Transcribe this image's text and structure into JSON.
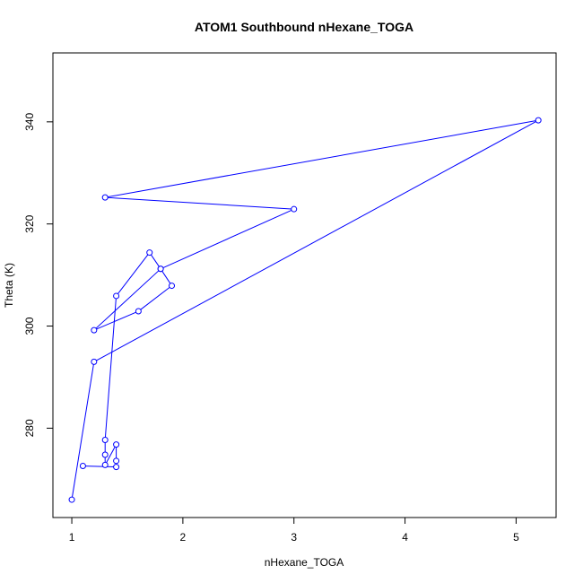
{
  "chart_data": {
    "type": "line",
    "title": "ATOM1 Southbound nHexane_TOGA",
    "xlabel": "nHexane_TOGA",
    "ylabel": "Theta (K)",
    "xlim": [
      0.83,
      5.36
    ],
    "ylim": [
      262.5,
      353.5
    ],
    "xticks": [
      1,
      2,
      3,
      4,
      5
    ],
    "yticks": [
      280,
      300,
      320,
      340
    ],
    "grid": false,
    "markers": "open-circle",
    "color": "#0000ff",
    "series": [
      {
        "x": [
          1.0,
          1.2,
          5.2,
          1.3,
          3.0,
          1.8,
          1.2,
          1.6,
          1.9,
          1.8,
          1.7,
          1.4,
          1.3,
          1.3,
          1.3,
          1.4,
          1.4,
          1.4,
          1.1
        ],
        "y": [
          266.0,
          293.0,
          340.3,
          325.2,
          322.9,
          311.2,
          299.2,
          302.9,
          307.9,
          311.2,
          314.4,
          305.9,
          277.7,
          274.8,
          272.8,
          276.8,
          273.6,
          272.4,
          272.6
        ]
      }
    ]
  }
}
